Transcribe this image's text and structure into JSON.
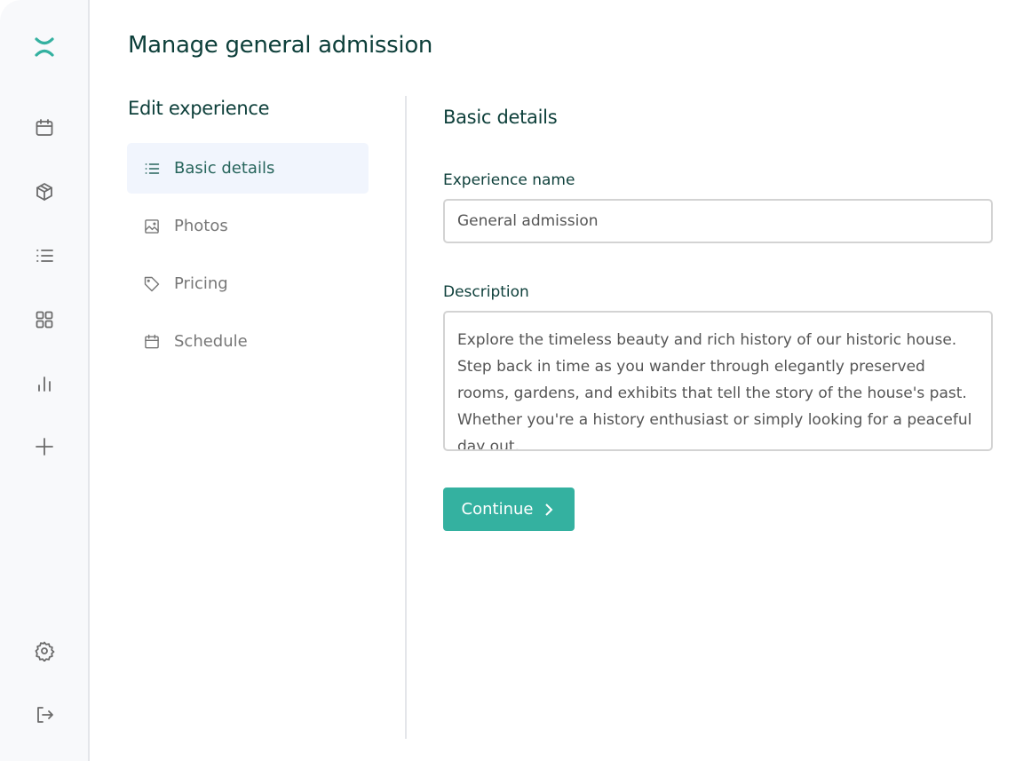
{
  "colors": {
    "accent": "#34b1a0",
    "heading": "#0d3f3a",
    "active_bg": "#f1f5fd"
  },
  "sidebar": {
    "logo": "x-logo-icon",
    "top_icons": [
      "calendar-icon",
      "box-icon",
      "list-icon",
      "grid-icon",
      "bar-chart-icon",
      "plus-icon"
    ],
    "bottom_icons": [
      "settings-icon",
      "logout-icon"
    ]
  },
  "header": {
    "title": "Manage general admission"
  },
  "edit_nav": {
    "title": "Edit experience",
    "items": [
      {
        "label": "Basic details",
        "icon": "list-icon",
        "active": true
      },
      {
        "label": "Photos",
        "icon": "image-icon",
        "active": false
      },
      {
        "label": "Pricing",
        "icon": "tag-icon",
        "active": false
      },
      {
        "label": "Schedule",
        "icon": "calendar-icon",
        "active": false
      }
    ]
  },
  "form": {
    "title": "Basic details",
    "name_label": "Experience name",
    "name_value": "General admission",
    "description_label": "Description",
    "description_value": "Explore the timeless beauty and rich history of our historic house. Step back in time as you wander through elegantly preserved rooms, gardens, and exhibits that tell the story of the house's past. Whether you're a history enthusiast or simply looking for a peaceful day out,",
    "continue_label": "Continue"
  }
}
